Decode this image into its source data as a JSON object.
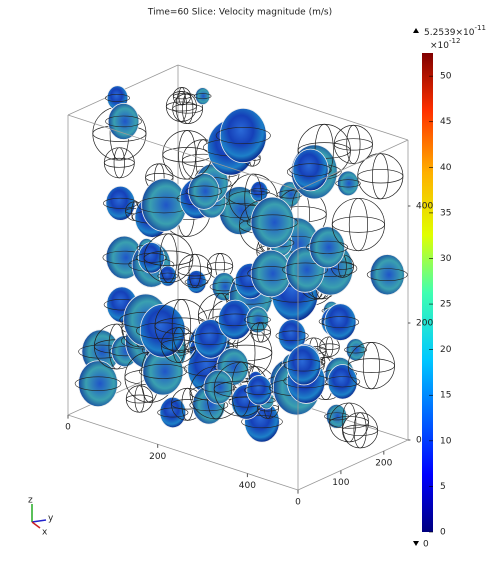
{
  "chart_data": {
    "type": "slice3d",
    "title": "Time=60   Slice: Velocity magnitude (m/s)",
    "colorbar": {
      "max_label": "5.2539×10",
      "max_exponent": "-11",
      "scale_label": "×10",
      "scale_exponent": "-12",
      "min_label": "0",
      "ylim": [
        0,
        52.539
      ],
      "yticks": [
        0,
        5,
        10,
        15,
        20,
        25,
        30,
        35,
        40,
        45,
        50
      ],
      "colormap": "rainbow"
    },
    "axes": [
      {
        "name": "x",
        "ticks": [
          0,
          200,
          400
        ]
      },
      {
        "name": "y",
        "ticks": [
          0,
          100,
          200
        ]
      },
      {
        "name": "z",
        "ticks": [
          0,
          200,
          400
        ]
      }
    ]
  }
}
